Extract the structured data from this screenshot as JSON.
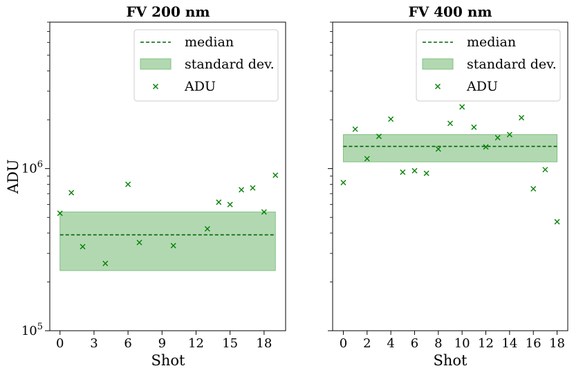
{
  "chart_data": [
    {
      "type": "scatter",
      "title": "FV 200 nm",
      "xlabel": "Shot",
      "ylabel": "ADU",
      "yscale": "log",
      "ylim": [
        100000,
        8000000
      ],
      "xlim": [
        -0.9,
        19.9
      ],
      "xticks": [
        0,
        3,
        6,
        9,
        12,
        15,
        18
      ],
      "xtick_labels": [
        "0",
        "3",
        "6",
        "9",
        "12",
        "15",
        "18"
      ],
      "ytick_major_labels": [
        {
          "value": 100000,
          "base": "10",
          "exp": "5"
        },
        {
          "value": 1000000,
          "base": "10",
          "exp": "6"
        }
      ],
      "median": 390000,
      "median_x_range": [
        0,
        19
      ],
      "std_band": [
        235000,
        540000
      ],
      "series": [
        {
          "name": "ADU",
          "x": [
            0,
            1,
            2,
            4,
            6,
            7,
            10,
            13,
            14,
            15,
            16,
            17,
            18,
            19
          ],
          "values": [
            530000,
            710000,
            330000,
            260000,
            800000,
            350000,
            335000,
            425000,
            620000,
            600000,
            740000,
            760000,
            540000,
            910000
          ]
        }
      ],
      "legend": {
        "position": "top-right",
        "entries": [
          "median",
          "standard dev.",
          "ADU"
        ]
      }
    },
    {
      "type": "scatter",
      "title": "FV 400 nm",
      "xlabel": "Shot",
      "ylabel": "",
      "yscale": "log",
      "ylim": [
        100000,
        8000000
      ],
      "xlim": [
        -0.9,
        18.9
      ],
      "xticks": [
        0,
        2,
        4,
        6,
        8,
        10,
        12,
        14,
        16,
        18
      ],
      "xtick_labels": [
        "0",
        "2",
        "4",
        "6",
        "8",
        "10",
        "12",
        "14",
        "16",
        "18"
      ],
      "ytick_major_labels": [],
      "median": 1370000,
      "median_x_range": [
        0,
        18
      ],
      "std_band": [
        1100000,
        1620000
      ],
      "series": [
        {
          "name": "ADU",
          "x": [
            0,
            1,
            2,
            3,
            4,
            5,
            6,
            7,
            8,
            9,
            10,
            11,
            12,
            13,
            14,
            15,
            16,
            17,
            18
          ],
          "values": [
            820000,
            1750000,
            1150000,
            1580000,
            2020000,
            950000,
            970000,
            935000,
            1320000,
            1900000,
            2400000,
            1800000,
            1360000,
            1550000,
            1620000,
            2060000,
            750000,
            985000,
            470000
          ]
        }
      ],
      "legend": {
        "position": "top-right",
        "entries": [
          "median",
          "standard dev.",
          "ADU"
        ]
      }
    }
  ],
  "colors": {
    "marker": "#008000",
    "median_line": "#006400",
    "band_fill": "#b2d8b2",
    "band_edge": "#80c080"
  }
}
